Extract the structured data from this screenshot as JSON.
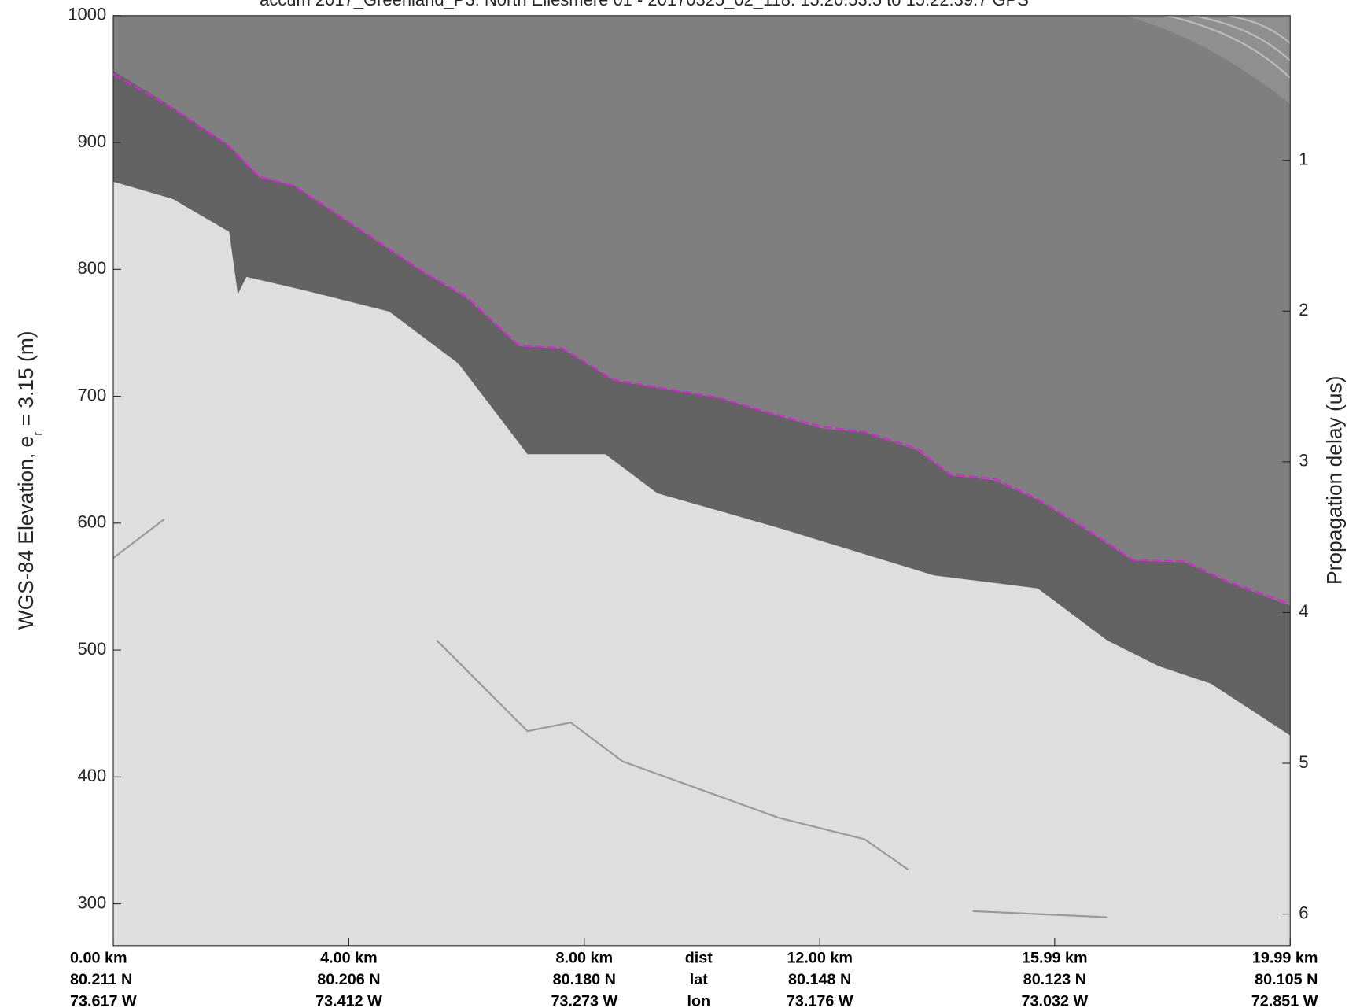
{
  "chart_data": {
    "type": "echogram",
    "title": "accum 2017_Greenland_P3: North Ellesmere 01 - 20170325_02_118: 15:20:53.5 to 15:22:39.7 GPS",
    "ylabel": {
      "text": "WGS-84 Elevation, e",
      "subscript": "r",
      "suffix": "= 3.15 (m)"
    },
    "y2label": "Propagation delay (us)",
    "xlim": [
      0,
      19.99
    ],
    "ylim": [
      267,
      1000
    ],
    "y2lim": [
      0.04,
      6.21
    ],
    "yticks": [
      300,
      400,
      500,
      600,
      700,
      800,
      900,
      1000
    ],
    "y2ticks": [
      1,
      2,
      3,
      4,
      5,
      6
    ],
    "xticks": [
      {
        "value": 0,
        "label": "0.00 km"
      },
      {
        "value": 4,
        "label": "4.00 km"
      },
      {
        "value": 8,
        "label": "8.00 km"
      },
      {
        "value": 12,
        "label": "12.00 km"
      },
      {
        "value": 15.99,
        "label": "15.99 km"
      },
      {
        "value": 19.99,
        "label": "19.99 km"
      }
    ],
    "row_names": [
      "dist",
      "lat",
      "lon"
    ],
    "lat_labels": [
      "80.211 N",
      "80.206 N",
      "80.180 N",
      "80.148 N",
      "80.123 N",
      "80.105 N"
    ],
    "lon_labels": [
      "73.617 W",
      "73.412 W",
      "73.273 W",
      "73.176 W",
      "73.032 W",
      "72.851 W"
    ],
    "x": [
      0,
      1.01,
      1.97,
      2.48,
      3.07,
      3.95,
      5.27,
      6.01,
      6.89,
      7.62,
      8.5,
      9.39,
      10.27,
      11.0,
      12.03,
      12.76,
      13.65,
      14.23,
      14.97,
      15.7,
      16.58,
      17.32,
      18.2,
      18.93,
      19.96
    ],
    "series": [
      {
        "color": "#e020e0",
        "values": [
          954,
          927,
          897,
          873,
          866,
          839,
          798,
          778,
          740,
          738,
          713,
          706,
          699,
          689,
          676,
          672,
          659,
          638,
          635,
          619,
          594,
          571,
          570,
          554,
          537
        ]
      }
    ]
  }
}
